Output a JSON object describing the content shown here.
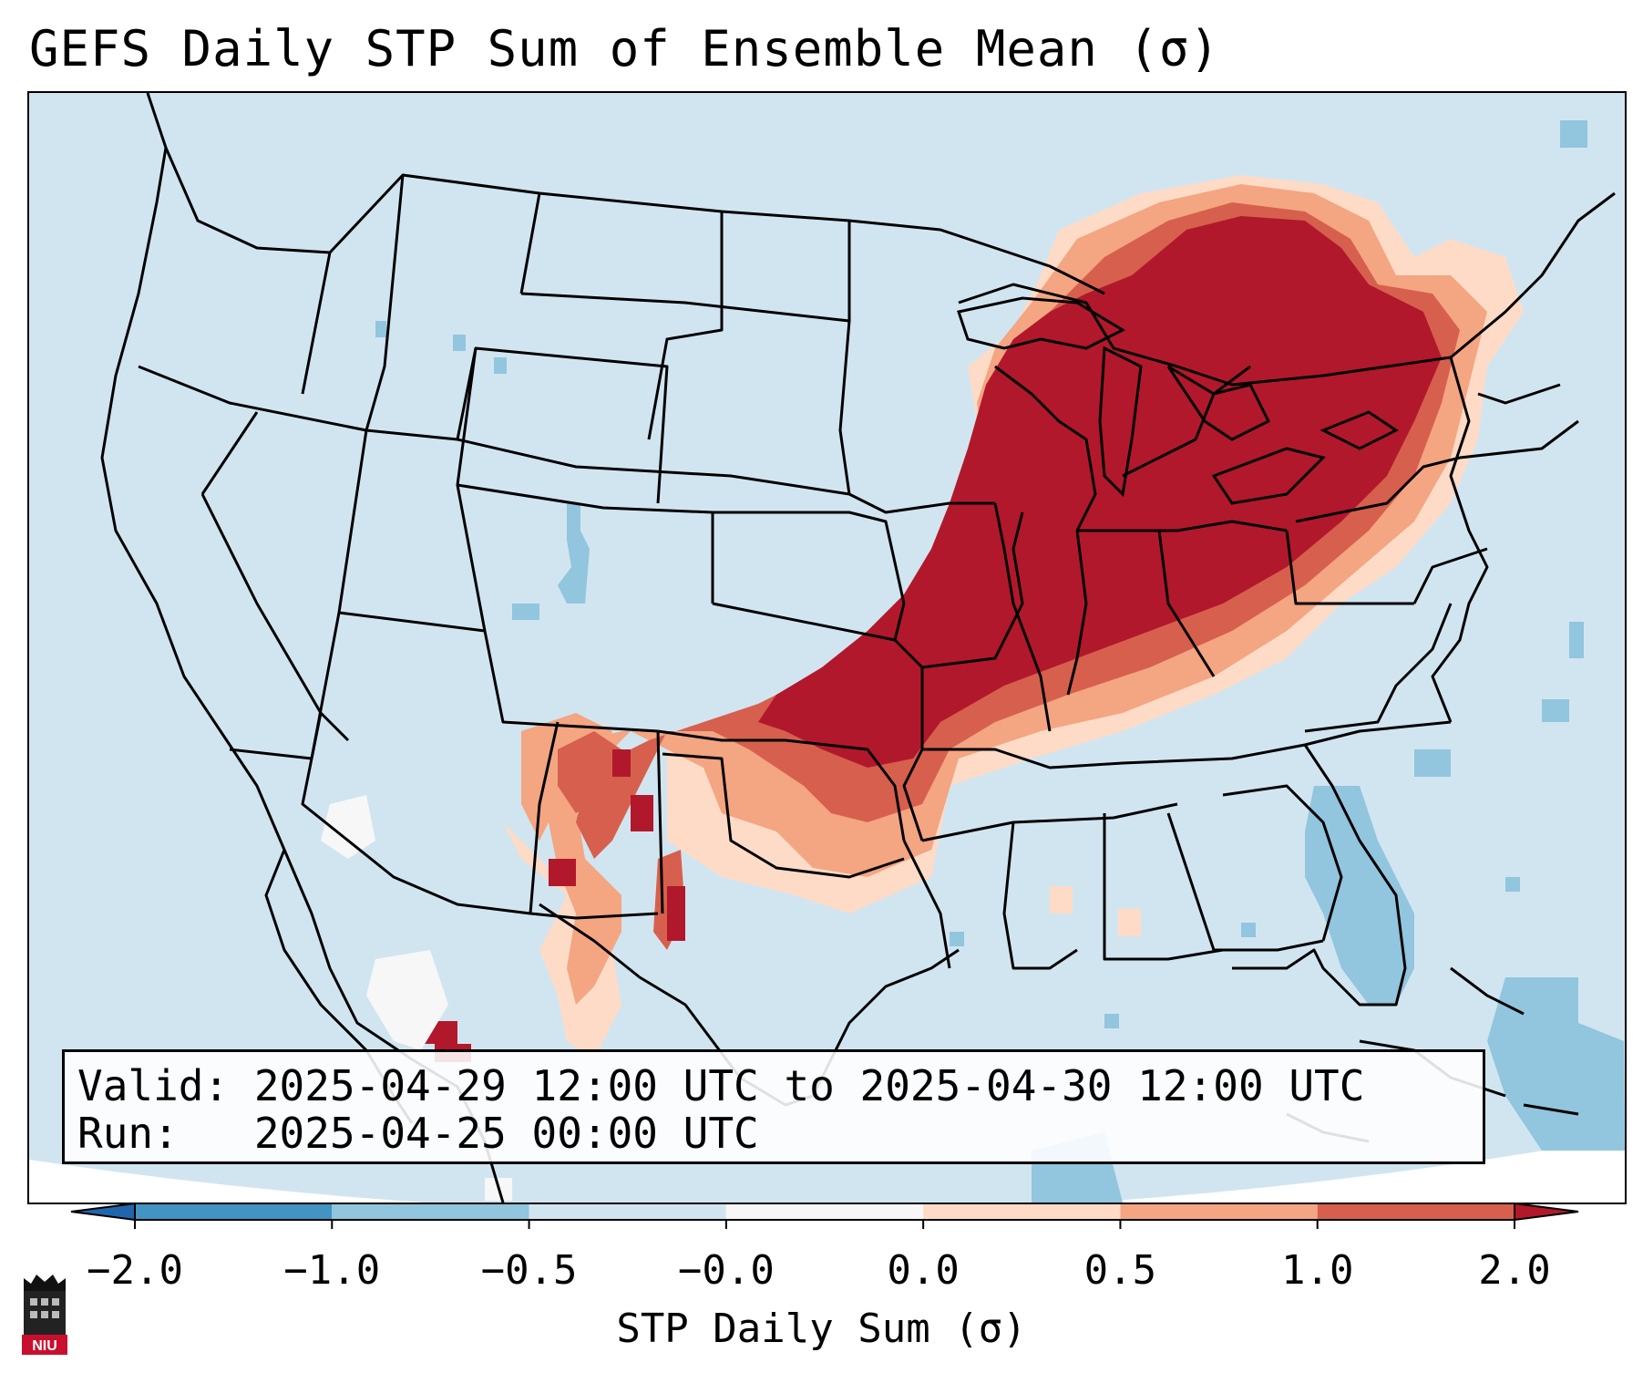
{
  "title": "GEFS Daily STP Sum of Ensemble Mean (σ)",
  "info": {
    "valid_line": "Valid: 2025-04-29 12:00 UTC to 2025-04-30 12:00 UTC",
    "run_line": "Run:   2025-04-25 00:00 UTC"
  },
  "colorbar": {
    "label": "STP Daily Sum (σ)",
    "ticks": [
      "−2.0",
      "−1.0",
      "−0.5",
      "−0.0",
      "0.0",
      "0.5",
      "1.0",
      "2.0"
    ],
    "bins": [
      {
        "range": "-2.0 to -1.0",
        "color": "#4393c3"
      },
      {
        "range": "-1.0 to -0.5",
        "color": "#92c5de"
      },
      {
        "range": "-0.5 to -0.0",
        "color": "#d1e5f0"
      },
      {
        "range": "-0.0 to 0.0",
        "color": "#f7f7f7"
      },
      {
        "range": "0.0 to 0.5",
        "color": "#fddbc7"
      },
      {
        "range": "0.5 to 1.0",
        "color": "#f4a582"
      },
      {
        "range": "1.0 to 2.0",
        "color": "#d6604d"
      }
    ],
    "under_color": "#2166ac",
    "over_color": "#b2182b"
  },
  "logo": {
    "text": "NIU",
    "color": "#c8102e"
  }
}
